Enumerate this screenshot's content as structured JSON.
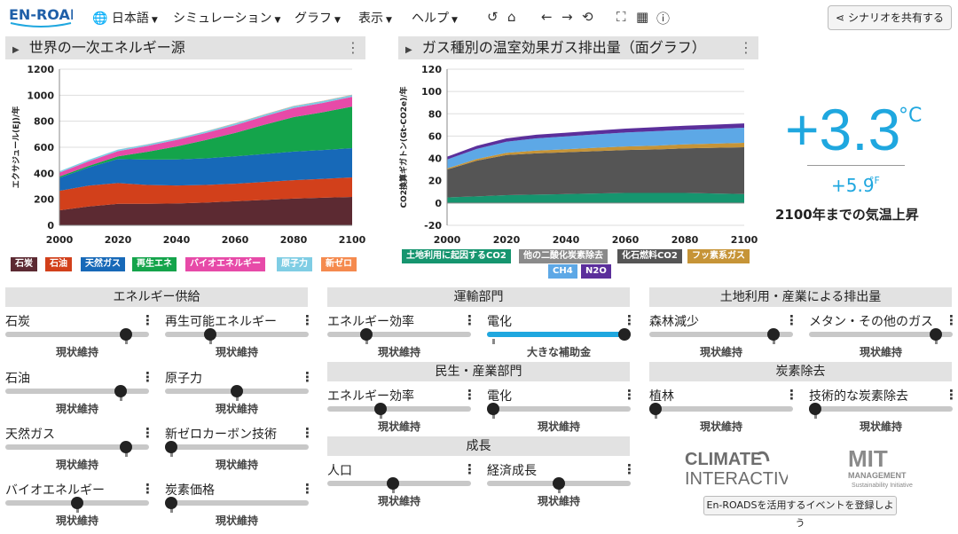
{
  "header": {
    "logo_text": "EN-ROADS",
    "menus": [
      {
        "label": "日本語"
      },
      {
        "label": "シミュレーション"
      },
      {
        "label": "グラフ"
      },
      {
        "label": "表示"
      },
      {
        "label": "ヘルプ"
      }
    ],
    "share_label": "シナリオを共有する"
  },
  "colors": {
    "coal": "#5c2a32",
    "oil": "#d2401b",
    "gas": "#1769b8",
    "renew": "#14a44b",
    "bio": "#e74aa8",
    "nuclear": "#7fcde4",
    "newzero": "#f58a4e",
    "landuse": "#16956f",
    "otherco2": "#8a8a8a",
    "fossilco2": "#555555",
    "fgas": "#c69437",
    "ch4": "#5da8e6",
    "n2o": "#5b2f9b",
    "accent": "#1fa7df"
  },
  "chart_left_title": "世界の一次エネルギー源",
  "chart_right_title": "ガス種別の温室効果ガス排出量（面グラフ）",
  "chart_data": [
    {
      "type": "area",
      "stacked": true,
      "title": "世界の一次エネルギー源",
      "ylabel": "エクサジュール(EJ)/年",
      "xlim": [
        2000,
        2100
      ],
      "ylim": [
        0,
        1200
      ],
      "yticks": [
        0,
        200,
        400,
        600,
        800,
        1000,
        1200
      ],
      "xticks": [
        2000,
        2020,
        2040,
        2060,
        2080,
        2100
      ],
      "x": [
        2000,
        2010,
        2020,
        2030,
        2040,
        2050,
        2060,
        2070,
        2080,
        2090,
        2100
      ],
      "series": [
        {
          "name": "石炭",
          "color_key": "coal",
          "values": [
            115,
            145,
            165,
            165,
            168,
            175,
            185,
            195,
            205,
            212,
            218
          ]
        },
        {
          "name": "石油",
          "color_key": "oil",
          "values": [
            150,
            160,
            160,
            145,
            138,
            135,
            135,
            138,
            142,
            145,
            150
          ]
        },
        {
          "name": "天然ガス",
          "color_key": "gas",
          "values": [
            100,
            140,
            185,
            195,
            200,
            205,
            210,
            215,
            220,
            222,
            225
          ]
        },
        {
          "name": "再生エネ",
          "color_key": "renew",
          "values": [
            10,
            12,
            20,
            60,
            100,
            140,
            180,
            225,
            265,
            290,
            320
          ]
        },
        {
          "name": "バイオエネルギー",
          "color_key": "bio",
          "values": [
            30,
            35,
            40,
            45,
            50,
            55,
            60,
            65,
            70,
            72,
            75
          ]
        },
        {
          "name": "原子力",
          "color_key": "nuclear",
          "values": [
            10,
            12,
            12,
            12,
            12,
            12,
            13,
            13,
            14,
            14,
            14
          ]
        },
        {
          "name": "新ゼロ",
          "color_key": "newzero",
          "values": [
            0,
            0,
            0,
            1,
            1,
            1,
            2,
            2,
            2,
            2,
            2
          ]
        }
      ]
    },
    {
      "type": "area",
      "stacked": true,
      "title": "ガス種別の温室効果ガス排出量（面グラフ）",
      "ylabel": "CO2換算ギガトン(Gt-CO2e)/年",
      "xlim": [
        2000,
        2100
      ],
      "ylim": [
        -20,
        120
      ],
      "yticks": [
        -20,
        0,
        20,
        40,
        60,
        80,
        100,
        120
      ],
      "xticks": [
        2000,
        2020,
        2040,
        2060,
        2080,
        2100
      ],
      "x": [
        2000,
        2010,
        2020,
        2030,
        2040,
        2050,
        2060,
        2070,
        2080,
        2090,
        2100
      ],
      "series": [
        {
          "name": "土地利用に起因するCO2",
          "color_key": "landuse",
          "values": [
            5,
            6,
            7,
            7.5,
            8,
            8.5,
            9,
            9,
            9,
            8.5,
            8
          ]
        },
        {
          "name": "他の二酸化炭素除去",
          "color_key": "otherco2",
          "values": [
            0,
            0,
            0,
            0,
            0,
            0,
            0,
            0,
            0,
            0,
            0
          ]
        },
        {
          "name": "化石燃料CO2",
          "color_key": "fossilco2",
          "values": [
            25,
            32,
            36,
            37,
            37.5,
            38,
            38.5,
            39,
            40,
            41,
            42
          ]
        },
        {
          "name": "フッ素系ガス",
          "color_key": "fgas",
          "values": [
            1,
            1.5,
            2,
            2.5,
            2.7,
            3,
            3.2,
            3.4,
            3.6,
            3.8,
            4
          ]
        },
        {
          "name": "CH4",
          "color_key": "ch4",
          "values": [
            8,
            9,
            10,
            11,
            11.5,
            12,
            12.5,
            13,
            13,
            13.2,
            13.5
          ]
        },
        {
          "name": "N2O",
          "color_key": "n2o",
          "values": [
            2.5,
            2.8,
            3,
            3.2,
            3.3,
            3.4,
            3.5,
            3.6,
            3.7,
            3.8,
            3.9
          ]
        }
      ]
    }
  ],
  "legend_left": [
    {
      "label": "石炭",
      "color_key": "coal"
    },
    {
      "label": "石油",
      "color_key": "oil"
    },
    {
      "label": "天然ガス",
      "color_key": "gas"
    },
    {
      "label": "再生エネ",
      "color_key": "renew"
    },
    {
      "label": "バイオエネルギー",
      "color_key": "bio"
    },
    {
      "label": "原子力",
      "color_key": "nuclear"
    },
    {
      "label": "新ゼロ",
      "color_key": "newzero"
    }
  ],
  "legend_right": [
    {
      "label": "土地利用に起因するCO2",
      "color_key": "landuse"
    },
    {
      "label": "他の二酸化炭素除去",
      "color_key": "otherco2"
    },
    {
      "label": "化石燃料CO2",
      "color_key": "fossilco2"
    },
    {
      "label": "フッ素系ガス",
      "color_key": "fgas"
    },
    {
      "label": "CH4",
      "color_key": "ch4"
    },
    {
      "label": "N2O",
      "color_key": "n2o"
    }
  ],
  "temperature": {
    "celsius": "+3.3",
    "celsius_unit": "°C",
    "fahrenheit": "+5.9",
    "fahrenheit_unit": "°F",
    "label": "2100年までの気温上昇"
  },
  "sections": {
    "supply": "エネルギー供給",
    "transport": "運輸部門",
    "buildings": "民生・産業部門",
    "growth": "成長",
    "landuse": "土地利用・産業による排出量",
    "removal": "炭素除去"
  },
  "sliders": [
    {
      "label": "石炭",
      "state": "現状維持",
      "level": 0.87,
      "default": 0.87
    },
    {
      "label": "再生可能エネルギー",
      "state": "現状維持",
      "level": 0.3,
      "default": 0.3
    },
    {
      "label": "石油",
      "state": "現状維持",
      "level": 0.83,
      "default": 0.83
    },
    {
      "label": "原子力",
      "state": "現状維持",
      "level": 0.5,
      "default": 0.5
    },
    {
      "label": "天然ガス",
      "state": "現状維持",
      "level": 0.87,
      "default": 0.87
    },
    {
      "label": "新ゼロカーボン技術",
      "state": "現状維持",
      "level": 0.0,
      "default": 0.0
    },
    {
      "label": "バイオエネルギー",
      "state": "現状維持",
      "level": 0.5,
      "default": 0.5
    },
    {
      "label": "炭素価格",
      "state": "現状維持",
      "level": 0.0,
      "default": 0.0
    },
    {
      "label": "エネルギー効率",
      "state": "現状維持",
      "level": 0.25,
      "default": 0.25
    },
    {
      "label": "電化",
      "state": "大きな補助金",
      "level": 1.0,
      "default": 0.0
    },
    {
      "label": "エネルギー効率",
      "state": "現状維持",
      "level": 0.36,
      "default": 0.36
    },
    {
      "label": "電化",
      "state": "現状維持",
      "level": 0.0,
      "default": 0.0
    },
    {
      "label": "人口",
      "state": "現状維持",
      "level": 0.45,
      "default": 0.45
    },
    {
      "label": "経済成長",
      "state": "現状維持",
      "level": 0.5,
      "default": 0.5
    },
    {
      "label": "森林減少",
      "state": "現状維持",
      "level": 0.9,
      "default": 0.9
    },
    {
      "label": "メタン・その他のガス",
      "state": "現状維持",
      "level": 0.92,
      "default": 0.92
    },
    {
      "label": "植林",
      "state": "現状維持",
      "level": 0.0,
      "default": 0.0
    },
    {
      "label": "技術的な炭素除去",
      "state": "現状維持",
      "level": 0.0,
      "default": 0.0
    }
  ],
  "brand": {
    "climate_line1": "CLIMATE",
    "climate_line2": "INTERACTIVE",
    "mit": "MIT",
    "mit_sub1": "MANAGEMENT",
    "mit_sub2": "Sustainability Initiative"
  },
  "event_button": "En-ROADSを活用するイベントを登録しよう"
}
